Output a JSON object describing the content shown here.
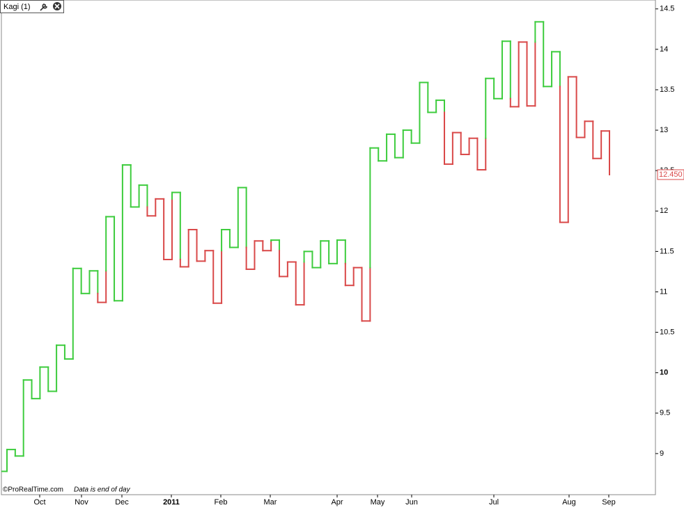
{
  "chart_data": {
    "type": "kagi",
    "title": "Kagi (1)",
    "source": "©ProRealTime.com",
    "note": "Data is end of day",
    "values": [
      8.78,
      9.05,
      8.97,
      9.91,
      9.68,
      10.07,
      9.77,
      10.34,
      10.17,
      11.29,
      10.98,
      11.26,
      10.87,
      11.93,
      10.89,
      12.57,
      12.05,
      12.32,
      11.94,
      12.15,
      11.4,
      12.23,
      11.31,
      11.77,
      11.38,
      11.51,
      10.86,
      11.77,
      11.55,
      12.29,
      11.28,
      11.63,
      11.51,
      11.64,
      11.19,
      11.37,
      10.84,
      11.5,
      11.3,
      11.63,
      11.35,
      11.64,
      11.08,
      11.3,
      10.64,
      12.78,
      12.62,
      12.95,
      12.66,
      13.0,
      12.84,
      13.59,
      13.22,
      13.37,
      12.58,
      12.97,
      12.7,
      12.9,
      12.51,
      13.64,
      13.39,
      14.1,
      13.29,
      14.09,
      13.3,
      14.34,
      13.54,
      13.97,
      11.86,
      13.66,
      12.91,
      13.11,
      12.65,
      12.99,
      12.45
    ],
    "last_price_label": "12.450",
    "x_labels": [
      "Oct",
      "Nov",
      "Dec",
      "2011",
      "Feb",
      "Mar",
      "Apr",
      "May",
      "Jun",
      "Jul",
      "Aug",
      "Sep"
    ],
    "ylim": [
      8.5,
      14.61
    ],
    "yticks": [
      9,
      9.5,
      10,
      10.5,
      11,
      11.5,
      12,
      12.5,
      13,
      13.5,
      14,
      14.5
    ],
    "up_color": "#3dcc3d",
    "down_color": "#d94848"
  }
}
